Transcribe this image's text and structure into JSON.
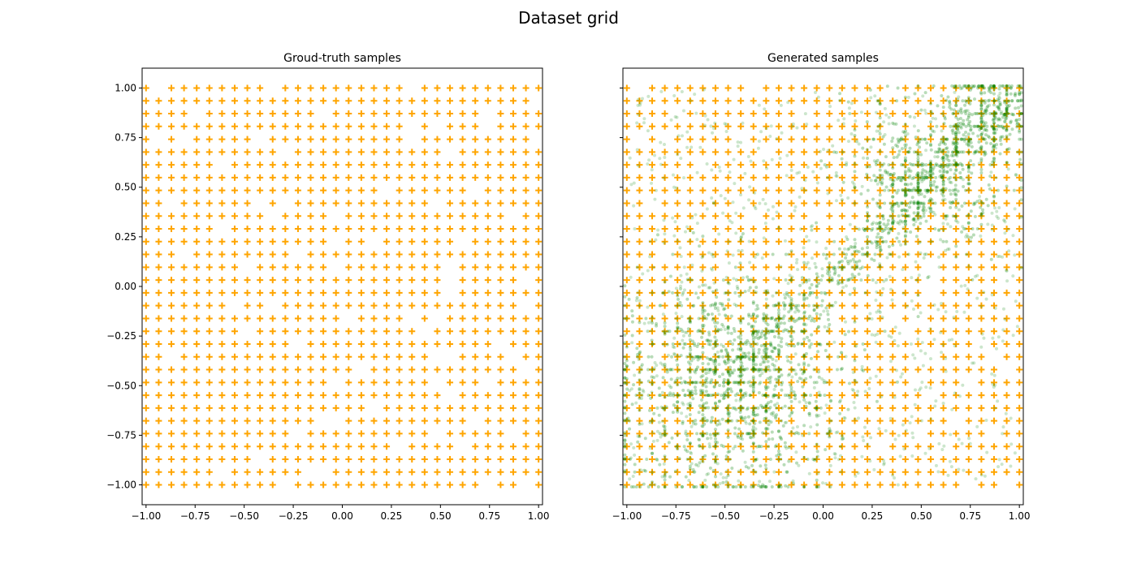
{
  "figure": {
    "title": "Dataset grid"
  },
  "chart_data": [
    {
      "type": "scatter",
      "title": "Groud-truth samples",
      "xlabel": "",
      "ylabel": "",
      "xlim": [
        -1.02,
        1.02
      ],
      "ylim": [
        -1.1,
        1.1
      ],
      "xticks": [
        -1.0,
        -0.75,
        -0.5,
        -0.25,
        0.0,
        0.25,
        0.5,
        0.75,
        1.0
      ],
      "xtick_labels": [
        "−1.00",
        "−0.75",
        "−0.50",
        "−0.25",
        "0.00",
        "0.25",
        "0.50",
        "0.75",
        "1.00"
      ],
      "yticks": [
        -1.0,
        -0.75,
        -0.5,
        -0.25,
        0.0,
        0.25,
        0.5,
        0.75,
        1.0
      ],
      "ytick_labels": [
        "−1.00",
        "−0.75",
        "−0.50",
        "−0.25",
        "0.00",
        "0.25",
        "0.50",
        "0.75",
        "1.00"
      ],
      "grid": false,
      "series": [
        {
          "marker": "plus",
          "color": "#ffa500",
          "points": "32x32 regular grid spanning [-1, 1] on both axes with scattered missing points"
        }
      ]
    },
    {
      "type": "scatter",
      "title": "Generated samples",
      "xlabel": "",
      "ylabel": "",
      "xlim": [
        -1.02,
        1.02
      ],
      "ylim": [
        -1.1,
        1.1
      ],
      "xticks": [
        -1.0,
        -0.75,
        -0.5,
        -0.25,
        0.0,
        0.25,
        0.5,
        0.75,
        1.0
      ],
      "xtick_labels": [
        "−1.00",
        "−0.75",
        "−0.50",
        "−0.25",
        "0.00",
        "0.25",
        "0.50",
        "0.75",
        "1.00"
      ],
      "yticks": [
        -1.0,
        -0.75,
        -0.5,
        -0.25,
        0.0,
        0.25,
        0.5,
        0.75,
        1.0
      ],
      "ytick_labels": [],
      "grid": false,
      "series": [
        {
          "marker": "plus",
          "color": "#ffa500",
          "points": "32x32 regular grid spanning [-1, 1] on both axes with scattered missing points"
        },
        {
          "marker": "dot",
          "color": "#008000",
          "clusters": [
            {
              "cx": -0.5,
              "cy": -0.5,
              "spread": 0.28,
              "weight": 0.45
            },
            {
              "cx": 0.5,
              "cy": 0.55,
              "spread": 0.2,
              "weight": 0.2
            },
            {
              "cx": 0.85,
              "cy": 0.88,
              "spread": 0.12,
              "weight": 0.1
            },
            {
              "line_from": [
                -0.45,
                -0.45
              ],
              "line_to": [
                0.95,
                0.95
              ],
              "spread": 0.06,
              "weight": 0.25
            }
          ]
        }
      ]
    }
  ]
}
